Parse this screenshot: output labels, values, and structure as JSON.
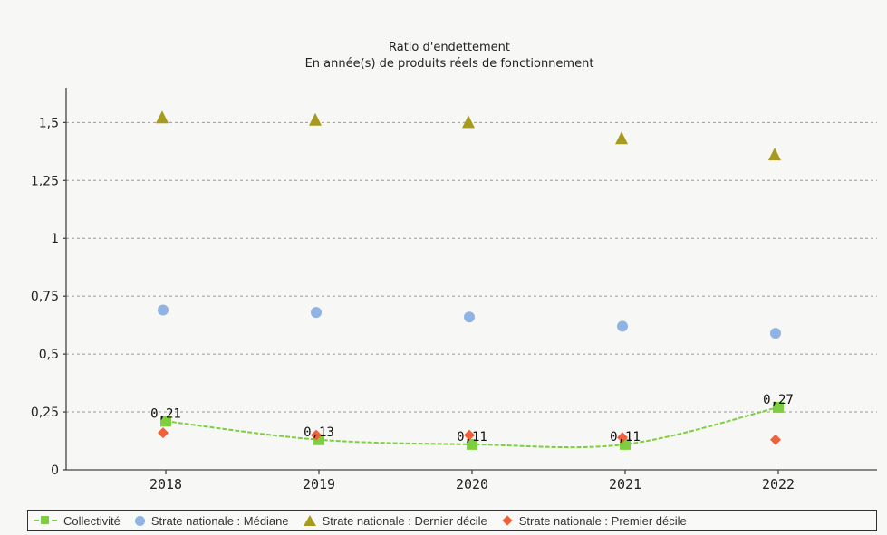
{
  "chart_data": {
    "type": "line",
    "title": "Ratio d'endettement",
    "subtitle": "En année(s) de produits réels de fonctionnement",
    "categories": [
      "2018",
      "2019",
      "2020",
      "2021",
      "2022"
    ],
    "ylim": [
      0,
      1.65
    ],
    "yticks": [
      {
        "value": 0,
        "label": "0"
      },
      {
        "value": 0.25,
        "label": "0,25"
      },
      {
        "value": 0.5,
        "label": "0,5"
      },
      {
        "value": 0.75,
        "label": "0,75"
      },
      {
        "value": 1,
        "label": "1"
      },
      {
        "value": 1.25,
        "label": "1,25"
      },
      {
        "value": 1.5,
        "label": "1,5"
      }
    ],
    "grid": true,
    "legend_position": "bottom",
    "series": [
      {
        "name": "Collectivité",
        "marker": "square",
        "line": true,
        "color": "#7ecf3f",
        "values": [
          0.21,
          0.13,
          0.11,
          0.11,
          0.27
        ],
        "data_labels": [
          "0,21",
          "0,13",
          "0,11",
          "0,11",
          "0,27"
        ]
      },
      {
        "name": "Strate nationale : Médiane",
        "marker": "circle",
        "line": false,
        "color": "#8fb3e3",
        "values": [
          0.69,
          0.68,
          0.66,
          0.62,
          0.59
        ]
      },
      {
        "name": "Strate nationale : Dernier décile",
        "marker": "triangle",
        "line": false,
        "color": "#a79a1f",
        "values": [
          1.52,
          1.51,
          1.5,
          1.43,
          1.36
        ]
      },
      {
        "name": "Strate nationale : Premier décile",
        "marker": "diamond",
        "line": false,
        "color": "#f0603a",
        "values": [
          0.16,
          0.15,
          0.15,
          0.14,
          0.13
        ]
      }
    ]
  }
}
